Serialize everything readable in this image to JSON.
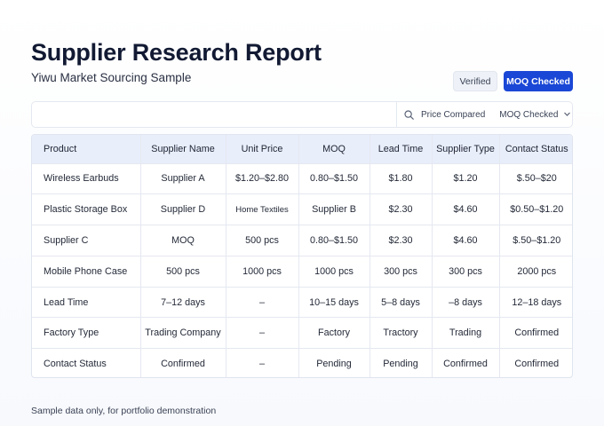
{
  "header": {
    "title": "Supplier Research Report",
    "subtitle": "Yiwu Market Sourcing Sample",
    "badge_verified": "Verified",
    "badge_moq": "MOQ Checked"
  },
  "filter": {
    "icon": "search-icon",
    "label_1": "Price Compared",
    "label_2": "MOQ Checked"
  },
  "table": {
    "columns": [
      "Product",
      "Supplier Name",
      "Unit Price",
      "MOQ",
      "Lead Time",
      "Supplier Type",
      "Contact Status"
    ],
    "rows": [
      [
        "Wireless Earbuds",
        "Supplier A",
        "$1.20–$2.80",
        "0.80–$1.50",
        "$1.80",
        "$1.20",
        "$.50–$20"
      ],
      [
        "Plastic Storage Box",
        "Supplier D",
        "Home Textiles",
        "Supplier B",
        "$2.30",
        "$4.60",
        "$0.50–$1.20"
      ],
      [
        "Supplier C",
        "MOQ",
        "500 pcs",
        "0.80–$1.50",
        "$2.30",
        "$4.60",
        "$.50–$1.20"
      ],
      [
        "Mobile Phone Case",
        "500 pcs",
        "1000 pcs",
        "1000 pcs",
        "300 pcs",
        "300 pcs",
        "2000 pcs"
      ],
      [
        "Lead Time",
        "7–12 days",
        "–",
        "10–15 days",
        "5–8 days",
        "–8 days",
        "12–18 days"
      ],
      [
        "Factory Type",
        "Trading Company",
        "–",
        "Factory",
        "Tractory",
        "Trading",
        "Confirmed"
      ],
      [
        "Contact Status",
        "Confirmed",
        "–",
        "Pending",
        "Pending",
        "Confirmed",
        "Confirmed"
      ]
    ]
  },
  "footer": {
    "note": "Sample data only, for portfolio demonstration"
  }
}
